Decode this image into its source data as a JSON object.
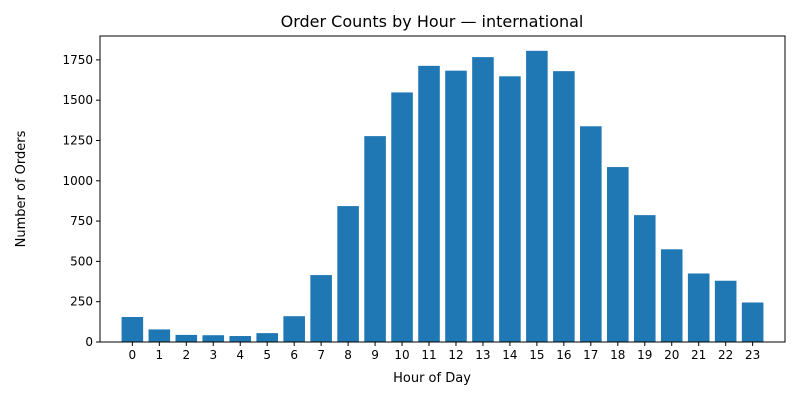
{
  "chart_data": {
    "type": "bar",
    "title": "Order Counts by Hour — international",
    "xlabel": "Hour of Day",
    "ylabel": "Number of Orders",
    "categories": [
      "0",
      "1",
      "2",
      "3",
      "4",
      "5",
      "6",
      "7",
      "8",
      "9",
      "10",
      "11",
      "12",
      "13",
      "14",
      "15",
      "16",
      "17",
      "18",
      "19",
      "20",
      "21",
      "22",
      "23"
    ],
    "values": [
      155,
      78,
      44,
      42,
      37,
      55,
      160,
      415,
      843,
      1277,
      1548,
      1713,
      1683,
      1767,
      1648,
      1806,
      1680,
      1338,
      1085,
      787,
      575,
      425,
      380,
      245
    ],
    "ylim": [
      0,
      1898
    ],
    "yticks": [
      0,
      250,
      500,
      750,
      1000,
      1250,
      1500,
      1750
    ],
    "grid": false,
    "bar_color": "#1f77b4"
  }
}
